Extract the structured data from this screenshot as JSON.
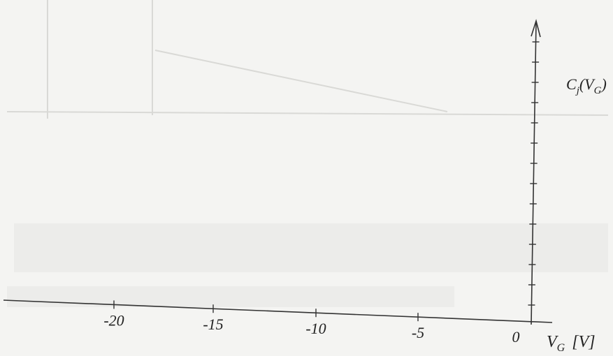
{
  "x_axis": {
    "ticks": [
      "-20",
      "-15",
      "-10",
      "-5",
      "0"
    ],
    "label": {
      "symbol": "V",
      "subscript": "G",
      "unit": "[V]"
    }
  },
  "y_axis": {
    "label": {
      "symbol": "C",
      "subscript": "j",
      "argument": "(V",
      "argument_subscript": "G",
      "close": ")"
    }
  }
}
